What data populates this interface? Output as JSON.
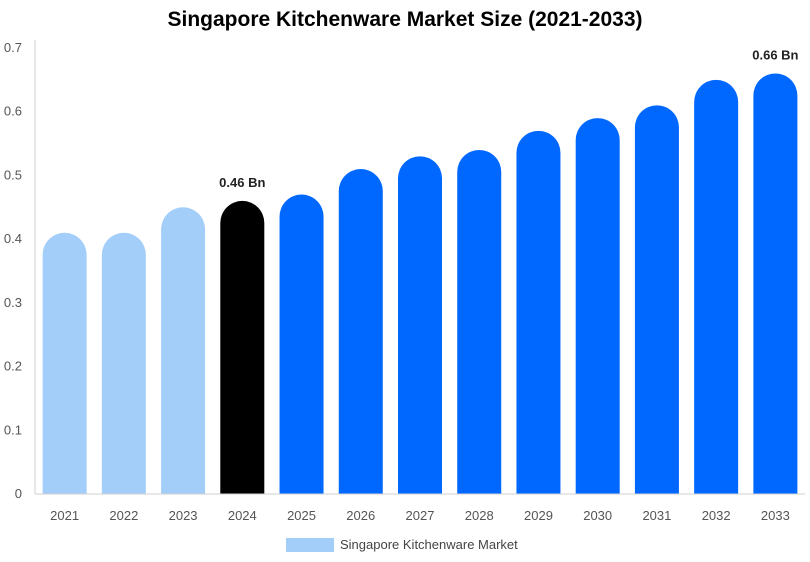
{
  "chart_data": {
    "type": "bar",
    "title": "Singapore Kitchenware Market Size (2021-2033)",
    "xlabel": "",
    "ylabel": "",
    "categories": [
      "2021",
      "2022",
      "2023",
      "2024",
      "2025",
      "2026",
      "2027",
      "2028",
      "2029",
      "2030",
      "2031",
      "2032",
      "2033"
    ],
    "series": [
      {
        "name": "Singapore Kitchenware Market",
        "values": [
          0.41,
          0.41,
          0.45,
          0.46,
          0.47,
          0.51,
          0.53,
          0.54,
          0.57,
          0.59,
          0.61,
          0.65,
          0.66
        ]
      }
    ],
    "ylim": [
      0,
      0.7
    ],
    "yticks": [
      "0",
      "0.1",
      "0.2",
      "0.3",
      "0.4",
      "0.5",
      "0.6",
      "0.7"
    ],
    "data_labels": [
      {
        "category": "2024",
        "text": "0.46 Bn"
      },
      {
        "category": "2033",
        "text": "0.66 Bn"
      }
    ],
    "grid": false,
    "legend": "bottom-center",
    "bar_colors": [
      "#a3cefa",
      "#a3cefa",
      "#a3cefa",
      "#000000",
      "#0068ff",
      "#0068ff",
      "#0068ff",
      "#0068ff",
      "#0068ff",
      "#0068ff",
      "#0068ff",
      "#0068ff",
      "#0068ff"
    ],
    "legend_color": "#a3cefa",
    "axis_color": "#d0d0d0"
  }
}
